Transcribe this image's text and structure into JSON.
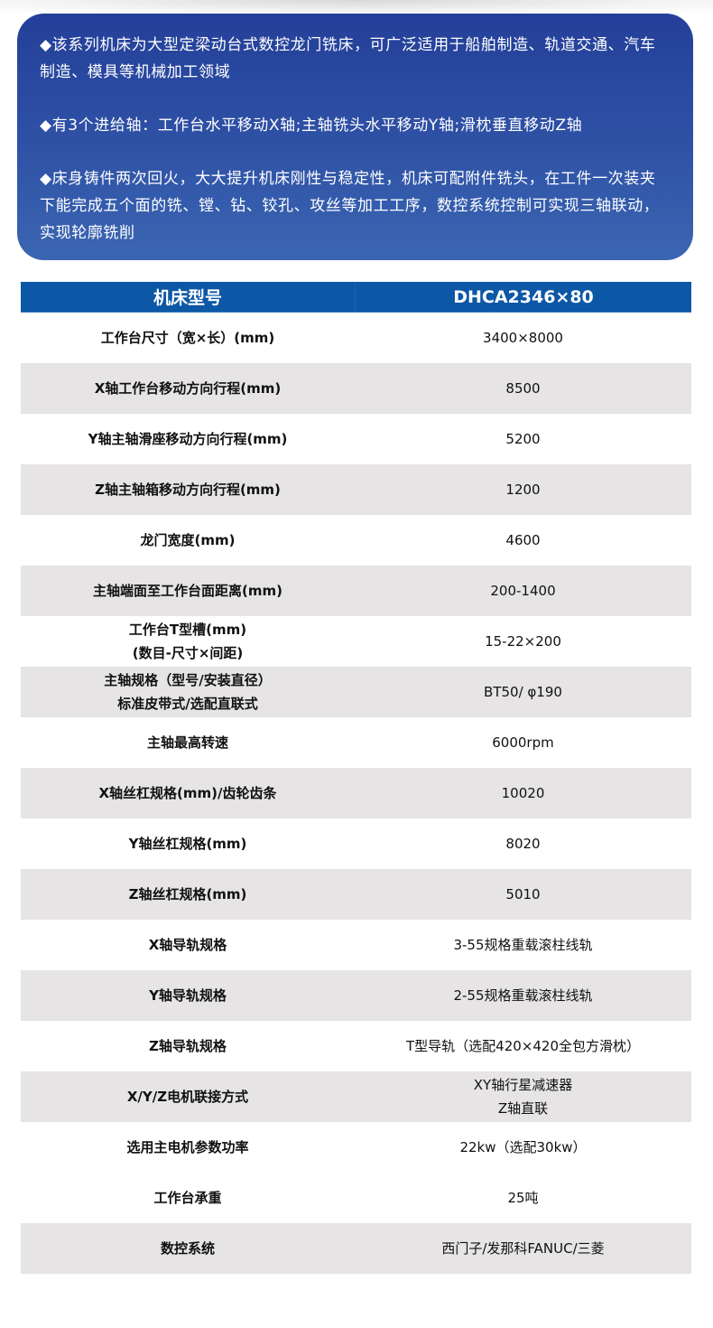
{
  "intro": {
    "paragraphs": [
      "◆该系列机床为大型定梁动台式数控龙门铣床，可广泛适用于船舶制造、轨道交通、汽车制造、模具等机械加工领域",
      "◆有3个进给轴：工作台水平移动X轴;主轴铣头水平移动Y轴;滑枕垂直移动Z轴",
      "◆床身铸件两次回火，大大提升机床刚性与稳定性，机床可配附件铣头，在工件一次装夹下能完成五个面的铣、镗、钻、铰孔、攻丝等加工工序，数控系统控制可实现三轴联动，实现轮廓铣削"
    ]
  },
  "table": {
    "header": {
      "label": "机床型号",
      "value": "DHCA2346×80"
    },
    "rows": [
      {
        "label": [
          "工作台尺寸（宽×长）(mm)"
        ],
        "value": [
          "3400×8000"
        ],
        "shade": false
      },
      {
        "label": [
          "X轴工作台移动方向行程(mm)"
        ],
        "value": [
          "8500"
        ],
        "shade": true
      },
      {
        "label": [
          "Y轴主轴滑座移动方向行程(mm)"
        ],
        "value": [
          "5200"
        ],
        "shade": false
      },
      {
        "label": [
          "Z轴主轴箱移动方向行程(mm)"
        ],
        "value": [
          "1200"
        ],
        "shade": true
      },
      {
        "label": [
          "龙门宽度(mm)"
        ],
        "value": [
          "4600"
        ],
        "shade": false
      },
      {
        "label": [
          "主轴端面至工作台面距离(mm)"
        ],
        "value": [
          "200-1400"
        ],
        "shade": true
      },
      {
        "label": [
          "工作台T型槽(mm)",
          "(数目-尺寸×间距)"
        ],
        "value": [
          "15-22×200"
        ],
        "shade": false
      },
      {
        "label": [
          "主轴规格（型号/安装直径）",
          "标准皮带式/选配直联式"
        ],
        "value": [
          "BT50/ φ190"
        ],
        "shade": true
      },
      {
        "label": [
          "主轴最高转速"
        ],
        "value": [
          "6000rpm"
        ],
        "shade": false
      },
      {
        "label": [
          "X轴丝杠规格(mm)/齿轮齿条"
        ],
        "value": [
          "10020"
        ],
        "shade": true
      },
      {
        "label": [
          "Y轴丝杠规格(mm)"
        ],
        "value": [
          "8020"
        ],
        "shade": false
      },
      {
        "label": [
          "Z轴丝杠规格(mm)"
        ],
        "value": [
          "5010"
        ],
        "shade": true
      },
      {
        "label": [
          "X轴导轨规格"
        ],
        "value": [
          "3-55规格重载滚柱线轨"
        ],
        "shade": false
      },
      {
        "label": [
          "Y轴导轨规格"
        ],
        "value": [
          "2-55规格重载滚柱线轨"
        ],
        "shade": true
      },
      {
        "label": [
          "Z轴导轨规格"
        ],
        "value": [
          "T型导轨（选配420×420全包方滑枕）"
        ],
        "shade": false
      },
      {
        "label": [
          "X/Y/Z电机联接方式"
        ],
        "value": [
          "XY轴行星减速器",
          "Z轴直联"
        ],
        "shade": true
      },
      {
        "label": [
          "选用主电机参数功率"
        ],
        "value": [
          "22kw（选配30kw）"
        ],
        "shade": false
      },
      {
        "label": [
          "工作台承重"
        ],
        "value": [
          "25吨"
        ],
        "shade": false
      },
      {
        "label": [
          "数控系统"
        ],
        "value": [
          "西门子/发那科FANUC/三菱"
        ],
        "shade": true
      }
    ]
  },
  "colors": {
    "card_top": "#243f99",
    "card_bottom": "#3b66b2",
    "header_bg": "#0c57a6",
    "row_shade": "#e6e4e5"
  }
}
